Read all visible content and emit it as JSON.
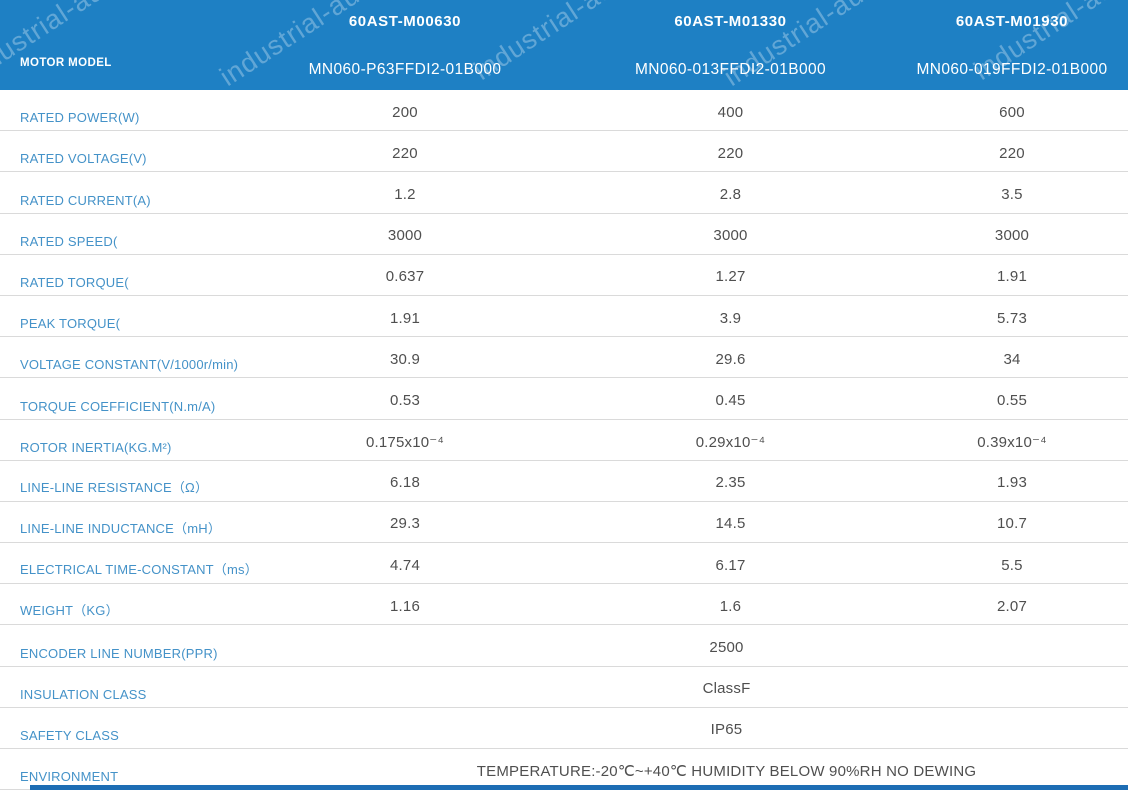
{
  "watermark": {
    "text": "industrial-auto"
  },
  "header": {
    "row_label": "MOTOR MODEL",
    "models": [
      {
        "name": "60AST-M00630",
        "code": "MN060-P63FFDI2-01B000"
      },
      {
        "name": "60AST-M01330",
        "code": "MN060-013FFDI2-01B000"
      },
      {
        "name": "60AST-M01930",
        "code": "MN060-019FFDI2-01B000"
      }
    ]
  },
  "table": {
    "rows": [
      {
        "label": "RATED POWER(W)",
        "values": [
          "200",
          "400",
          "600"
        ]
      },
      {
        "label": "RATED VOLTAGE(V)",
        "values": [
          "220",
          "220",
          "220"
        ]
      },
      {
        "label": "RATED CURRENT(A)",
        "values": [
          "1.2",
          "2.8",
          "3.5"
        ]
      },
      {
        "label": "RATED SPEED(",
        "values": [
          "3000",
          "3000",
          "3000"
        ]
      },
      {
        "label": "RATED TORQUE(",
        "values": [
          "0.637",
          "1.27",
          "1.91"
        ]
      },
      {
        "label": "PEAK TORQUE(",
        "values": [
          "1.91",
          "3.9",
          "5.73"
        ]
      },
      {
        "label": "VOLTAGE CONSTANT(V/1000r/min)",
        "values": [
          "30.9",
          "29.6",
          "34"
        ]
      },
      {
        "label": "TORQUE COEFFICIENT(N.m/A)",
        "values": [
          "0.53",
          "0.45",
          "0.55"
        ]
      },
      {
        "label": "ROTOR INERTIA(KG.M²)",
        "values": [
          "0.175x10⁻⁴",
          "0.29x10⁻⁴",
          "0.39x10⁻⁴"
        ]
      },
      {
        "label": "LINE-LINE RESISTANCE（Ω）",
        "values": [
          "6.18",
          "2.35",
          "1.93"
        ]
      },
      {
        "label": "LINE-LINE INDUCTANCE（mH）",
        "values": [
          "29.3",
          "14.5",
          "10.7"
        ]
      },
      {
        "label": "ELECTRICAL TIME-CONSTANT（ms）",
        "values": [
          "4.74",
          "6.17",
          "5.5"
        ]
      },
      {
        "label": "WEIGHT（KG）",
        "values": [
          "1.16",
          "1.6",
          "2.07"
        ]
      },
      {
        "label": "ENCODER LINE NUMBER(PPR)",
        "span_value": "2500"
      },
      {
        "label": "INSULATION CLASS",
        "span_value": "ClassF"
      },
      {
        "label": "SAFETY CLASS",
        "span_value": "IP65"
      },
      {
        "label": "ENVIRONMENT",
        "span_value": "TEMPERATURE:-20℃~+40℃  HUMIDITY BELOW 90%RH NO DEWING"
      }
    ]
  },
  "colors": {
    "header_blue": "#1E80C4",
    "label_blue": "#4492C8",
    "value_gray": "#4F4F4F",
    "divider_gray": "#DADADA",
    "bottom_bar_blue": "#1D6DB4"
  }
}
